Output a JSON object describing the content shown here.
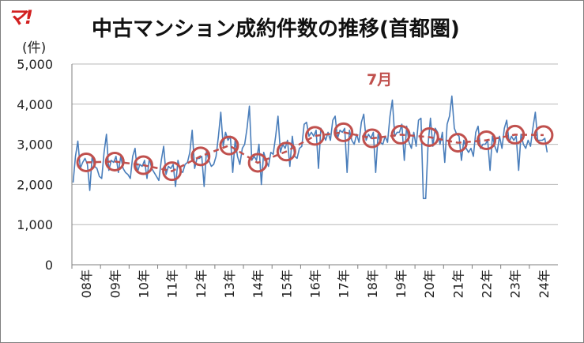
{
  "logo_text": "マ!",
  "chart_data": {
    "type": "line",
    "title": "中古マンション成約件数の推移(首都圏)",
    "ylabel": "(件)",
    "ylim": [
      0,
      5000
    ],
    "yticks": [
      "5,000",
      "4,000",
      "3,000",
      "2,000",
      "1,000",
      "0"
    ],
    "ytick_values": [
      5000,
      4000,
      3000,
      2000,
      1000,
      0
    ],
    "xtick_labels": [
      "08年",
      "09年",
      "10年",
      "11年",
      "12年",
      "13年",
      "14年",
      "15年",
      "16年",
      "17年",
      "18年",
      "19年",
      "20年",
      "21年",
      "22年",
      "23年",
      "24年"
    ],
    "annotation": "7月",
    "grid": true,
    "series": [
      {
        "type": "monthly",
        "color": "#4a7ebb",
        "values": [
          2050,
          2700,
          3080,
          2400,
          2550,
          2650,
          2500,
          1850,
          2700,
          2450,
          2400,
          2200,
          2150,
          2800,
          3250,
          2350,
          2600,
          2550,
          2700,
          2300,
          2700,
          2400,
          2300,
          2250,
          2150,
          2700,
          2900,
          2300,
          2500,
          2450,
          2600,
          2150,
          2650,
          2400,
          2300,
          2200,
          2100,
          2600,
          2950,
          2250,
          2450,
          2400,
          2500,
          1950,
          2600,
          2350,
          2300,
          2500,
          2550,
          2800,
          3350,
          2400,
          2650,
          2650,
          2700,
          1950,
          2850,
          2600,
          2450,
          2500,
          2700,
          3200,
          3800,
          2950,
          3300,
          3100,
          3200,
          2300,
          3100,
          2700,
          2500,
          2900,
          3000,
          3400,
          3950,
          2600,
          2700,
          2600,
          3000,
          2000,
          2800,
          2600,
          2450,
          2800,
          2750,
          3200,
          3700,
          2800,
          3000,
          2900,
          3100,
          2450,
          3200,
          2700,
          2650,
          2900,
          2950,
          3500,
          3550,
          3200,
          3300,
          3200,
          3350,
          2400,
          3400,
          3250,
          3100,
          3300,
          3100,
          3600,
          3700,
          3150,
          3350,
          3300,
          3400,
          2300,
          3350,
          3100,
          3000,
          3250,
          3050,
          3550,
          3750,
          3100,
          3250,
          3150,
          3300,
          2300,
          3250,
          3050,
          3000,
          3200,
          3050,
          3700,
          4100,
          3200,
          3300,
          3300,
          3500,
          2600,
          3450,
          3050,
          2900,
          3300,
          2950,
          3600,
          3650,
          1650,
          1650,
          3000,
          3650,
          2950,
          3400,
          3300,
          3000,
          3300,
          2550,
          3500,
          3700,
          4200,
          3400,
          3250,
          3200,
          2600,
          3100,
          2900,
          2800,
          2900,
          2700,
          3300,
          3450,
          2900,
          3000,
          3000,
          3100,
          2350,
          3200,
          2950,
          2800,
          3200,
          2900,
          3400,
          3600,
          3050,
          3200,
          3100,
          3200,
          2350,
          3250,
          3000,
          2900,
          3100,
          2950,
          3400,
          3800,
          3100,
          3100,
          3100,
          3150,
          2800
        ]
      },
      {
        "type": "july",
        "color": "#c0504d",
        "values": [
          2550,
          2570,
          2480,
          2330,
          2700,
          2970,
          2540,
          2820,
          3210,
          3300,
          3150,
          3240,
          3180,
          3040,
          3100,
          3240,
          3230
        ]
      }
    ]
  }
}
